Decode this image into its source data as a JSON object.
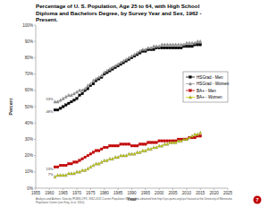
{
  "chart_data": {
    "type": "line",
    "title": "Percentage of U. S. Population, Age 25 to 64, with High School Diploma and Bachelors Degree, by Survey Year and Sex, 1962 - Present.",
    "x_label": "Year",
    "y_label": "Percent",
    "x": [
      1962,
      1963,
      1964,
      1965,
      1966,
      1967,
      1968,
      1969,
      1970,
      1971,
      1972,
      1973,
      1974,
      1975,
      1976,
      1977,
      1978,
      1979,
      1980,
      1981,
      1982,
      1983,
      1984,
      1985,
      1986,
      1987,
      1988,
      1989,
      1990,
      1991,
      1992,
      1993,
      1994,
      1995,
      1996,
      1997,
      1998,
      1999,
      2000,
      2001,
      2002,
      2003,
      2004,
      2005,
      2006,
      2007,
      2008,
      2009,
      2010,
      2011,
      2012,
      2013,
      2014,
      2015
    ],
    "series": [
      {
        "name": "HSGrad - Men",
        "color": "#000000",
        "marker": "square",
        "line_style": "solid",
        "values": [
          48,
          48,
          49,
          50,
          51,
          52,
          53,
          54,
          55,
          57,
          58,
          60,
          61,
          63,
          64,
          66,
          67,
          68,
          70,
          71,
          72,
          73,
          74,
          75,
          76,
          77,
          78,
          79,
          80,
          81,
          82,
          83,
          84,
          84,
          85,
          85,
          85,
          86,
          86,
          86,
          86,
          86,
          86,
          86,
          86,
          86,
          86,
          87,
          87,
          87,
          87,
          88,
          88,
          88
        ]
      },
      {
        "name": "HSGrad - Women",
        "color": "#9a9a9a",
        "marker": "triangle",
        "line_style": "solid",
        "values": [
          53,
          53,
          54,
          55,
          56,
          57,
          57,
          58,
          59,
          60,
          60,
          61,
          63,
          64,
          66,
          67,
          68,
          69,
          71,
          72,
          73,
          74,
          75,
          76,
          77,
          78,
          79,
          80,
          81,
          82,
          83,
          84,
          85,
          85,
          86,
          86,
          87,
          87,
          87,
          88,
          88,
          88,
          88,
          88,
          88,
          88,
          88,
          88,
          89,
          89,
          89,
          89,
          90,
          90
        ]
      },
      {
        "name": "BA+ - Men",
        "color": "#c00000",
        "marker": "square",
        "line_style": "solid",
        "values": [
          13,
          13,
          14,
          14,
          14,
          15,
          15,
          16,
          16,
          17,
          18,
          19,
          20,
          21,
          22,
          23,
          23,
          24,
          25,
          25,
          26,
          26,
          26,
          26,
          27,
          27,
          27,
          27,
          26,
          26,
          26,
          27,
          27,
          27,
          28,
          28,
          28,
          28,
          29,
          29,
          29,
          29,
          29,
          29,
          29,
          30,
          30,
          30,
          30,
          31,
          31,
          31,
          32,
          32
        ]
      },
      {
        "name": "BA+ - Women",
        "color": "#c8d400",
        "marker": "triangle",
        "line_style": "solid",
        "values": [
          7,
          8,
          8,
          8,
          8,
          9,
          9,
          9,
          10,
          10,
          11,
          11,
          12,
          13,
          14,
          15,
          15,
          16,
          17,
          17,
          18,
          18,
          19,
          19,
          20,
          20,
          20,
          21,
          21,
          21,
          22,
          22,
          23,
          23,
          24,
          24,
          25,
          25,
          26,
          26,
          27,
          27,
          28,
          28,
          28,
          29,
          29,
          30,
          30,
          31,
          32,
          33,
          33,
          34
        ]
      }
    ],
    "annotations": [
      "48%",
      "53%",
      "13%",
      "7%"
    ],
    "xlim": [
      1955,
      2025
    ],
    "xticks": [
      1955,
      1960,
      1965,
      1970,
      1975,
      1980,
      1985,
      1990,
      1995,
      2000,
      2005,
      2010,
      2015,
      2020,
      2025
    ],
    "ylim": [
      0,
      100
    ],
    "yticks": [
      {
        "value": 0,
        "label": "0%"
      },
      {
        "value": 10,
        "label": "10%"
      },
      {
        "value": 20,
        "label": "20%"
      },
      {
        "value": 30,
        "label": "30%"
      },
      {
        "value": 40,
        "label": "40%"
      },
      {
        "value": 50,
        "label": "50%"
      },
      {
        "value": 60,
        "label": "60%"
      },
      {
        "value": 70,
        "label": "70%"
      },
      {
        "value": 80,
        "label": "80%"
      },
      {
        "value": 90,
        "label": "90%"
      },
      {
        "value": 100,
        "label": "100%"
      }
    ],
    "grid": false,
    "legend": "right",
    "footnote": "Analysis and Authors: Data by IPUMS-CPS, 1962-2015 Current Population Survey data obtained from http://cps.ipums.org/cps/ housed at the University of Minnesota Population Center (see King, et al. 2010).",
    "page_number": "7"
  }
}
